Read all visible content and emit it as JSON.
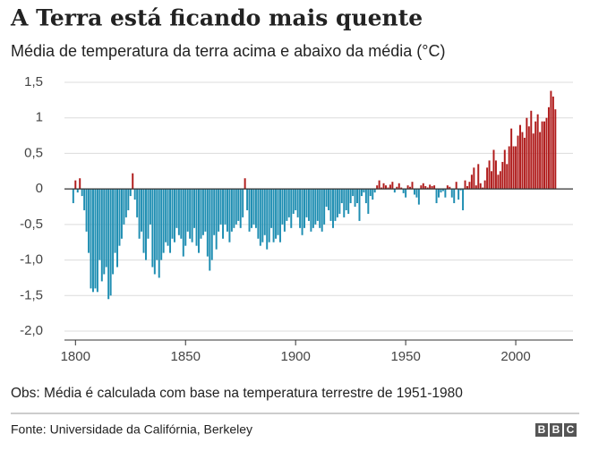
{
  "chart_data": {
    "type": "bar",
    "title": "A Terra está ficando mais quente",
    "subtitle": "Média de temperatura da terra acima e abaixo da média (°C)",
    "note": "Obs: Média é calculada com base na temperatura terrestre de 1951-1980",
    "source": "Fonte: Universidade da Califórnia, Berkeley",
    "logo": [
      "B",
      "B",
      "C"
    ],
    "positive_color": "#b01c1c",
    "negative_color": "#1f8eb2",
    "grid": true,
    "xlim": [
      1795,
      2026
    ],
    "xticks": [
      1800,
      1850,
      1900,
      1950,
      2000
    ],
    "ylim": [
      -2.0,
      1.5
    ],
    "yticks": [
      {
        "value": 1.5,
        "label": "1,5"
      },
      1,
      {
        "value": 0.5,
        "label": "0,5"
      },
      0,
      {
        "value": -0.5,
        "label": "-0,5"
      },
      {
        "value": -1.0,
        "label": "-1,0"
      },
      {
        "value": -1.5,
        "label": "-1,5"
      },
      {
        "value": -2.0,
        "label": "-2,0"
      }
    ],
    "x": [
      1799,
      1800,
      1801,
      1802,
      1803,
      1804,
      1805,
      1806,
      1807,
      1808,
      1809,
      1810,
      1811,
      1812,
      1813,
      1814,
      1815,
      1816,
      1817,
      1818,
      1819,
      1820,
      1821,
      1822,
      1823,
      1824,
      1825,
      1826,
      1827,
      1828,
      1829,
      1830,
      1831,
      1832,
      1833,
      1834,
      1835,
      1836,
      1837,
      1838,
      1839,
      1840,
      1841,
      1842,
      1843,
      1844,
      1845,
      1846,
      1847,
      1848,
      1849,
      1850,
      1851,
      1852,
      1853,
      1854,
      1855,
      1856,
      1857,
      1858,
      1859,
      1860,
      1861,
      1862,
      1863,
      1864,
      1865,
      1866,
      1867,
      1868,
      1869,
      1870,
      1871,
      1872,
      1873,
      1874,
      1875,
      1876,
      1877,
      1878,
      1879,
      1880,
      1881,
      1882,
      1883,
      1884,
      1885,
      1886,
      1887,
      1888,
      1889,
      1890,
      1891,
      1892,
      1893,
      1894,
      1895,
      1896,
      1897,
      1898,
      1899,
      1900,
      1901,
      1902,
      1903,
      1904,
      1905,
      1906,
      1907,
      1908,
      1909,
      1910,
      1911,
      1912,
      1913,
      1914,
      1915,
      1916,
      1917,
      1918,
      1919,
      1920,
      1921,
      1922,
      1923,
      1924,
      1925,
      1926,
      1927,
      1928,
      1929,
      1930,
      1931,
      1932,
      1933,
      1934,
      1935,
      1936,
      1937,
      1938,
      1939,
      1940,
      1941,
      1942,
      1943,
      1944,
      1945,
      1946,
      1947,
      1948,
      1949,
      1950,
      1951,
      1952,
      1953,
      1954,
      1955,
      1956,
      1957,
      1958,
      1959,
      1960,
      1961,
      1962,
      1963,
      1964,
      1965,
      1966,
      1967,
      1968,
      1969,
      1970,
      1971,
      1972,
      1973,
      1974,
      1975,
      1976,
      1977,
      1978,
      1979,
      1980,
      1981,
      1982,
      1983,
      1984,
      1985,
      1986,
      1987,
      1988,
      1989,
      1990,
      1991,
      1992,
      1993,
      1994,
      1995,
      1996,
      1997,
      1998,
      1999,
      2000,
      2001,
      2002,
      2003,
      2004,
      2005,
      2006,
      2007,
      2008,
      2009,
      2010,
      2011,
      2012,
      2013,
      2014,
      2015,
      2016,
      2017,
      2018
    ],
    "values": [
      -0.2,
      0.12,
      -0.05,
      0.15,
      -0.1,
      -0.3,
      -0.6,
      -0.9,
      -1.4,
      -1.45,
      -1.4,
      -1.45,
      -1.0,
      -1.3,
      -1.2,
      -1.1,
      -1.55,
      -1.5,
      -1.2,
      -0.9,
      -1.1,
      -0.8,
      -0.7,
      -0.5,
      -0.4,
      -0.3,
      -0.1,
      0.22,
      -0.15,
      -0.4,
      -0.7,
      -0.6,
      -0.9,
      -1.0,
      -0.7,
      -0.5,
      -1.1,
      -1.2,
      -1.0,
      -1.25,
      -1.0,
      -0.9,
      -0.75,
      -0.8,
      -0.9,
      -0.7,
      -0.75,
      -0.55,
      -0.65,
      -0.7,
      -0.95,
      -0.8,
      -0.6,
      -0.7,
      -0.75,
      -0.55,
      -0.8,
      -0.9,
      -0.7,
      -0.65,
      -0.6,
      -0.95,
      -1.15,
      -1.0,
      -0.65,
      -0.85,
      -0.6,
      -0.5,
      -0.7,
      -0.5,
      -0.6,
      -0.75,
      -0.6,
      -0.55,
      -0.5,
      -0.45,
      -0.55,
      -0.4,
      0.15,
      -0.3,
      -0.6,
      -0.55,
      -0.5,
      -0.55,
      -0.7,
      -0.8,
      -0.75,
      -0.65,
      -0.85,
      -0.75,
      -0.55,
      -0.75,
      -0.7,
      -0.65,
      -0.75,
      -0.5,
      -0.6,
      -0.45,
      -0.4,
      -0.55,
      -0.35,
      -0.3,
      -0.4,
      -0.55,
      -0.65,
      -0.55,
      -0.4,
      -0.45,
      -0.6,
      -0.55,
      -0.5,
      -0.45,
      -0.55,
      -0.6,
      -0.5,
      -0.25,
      -0.3,
      -0.45,
      -0.55,
      -0.45,
      -0.4,
      -0.35,
      -0.2,
      -0.4,
      -0.3,
      -0.35,
      -0.2,
      -0.1,
      -0.25,
      -0.2,
      -0.45,
      -0.1,
      -0.05,
      -0.2,
      -0.35,
      -0.1,
      -0.15,
      -0.05,
      0.05,
      0.12,
      0.02,
      0.08,
      0.05,
      0.02,
      0.06,
      0.1,
      -0.05,
      0.03,
      0.08,
      0.02,
      -0.06,
      -0.12,
      0.05,
      0.03,
      0.1,
      -0.08,
      -0.12,
      -0.22,
      0.05,
      0.08,
      0.04,
      0.02,
      0.06,
      0.04,
      0.05,
      -0.2,
      -0.12,
      -0.05,
      -0.03,
      -0.12,
      0.05,
      0.03,
      -0.12,
      -0.2,
      0.1,
      -0.15,
      -0.02,
      -0.3,
      0.12,
      0.04,
      0.1,
      0.2,
      0.3,
      0.05,
      0.35,
      0.08,
      0.02,
      0.12,
      0.3,
      0.4,
      0.25,
      0.55,
      0.4,
      0.2,
      0.25,
      0.38,
      0.55,
      0.35,
      0.6,
      0.85,
      0.6,
      0.6,
      0.75,
      0.9,
      0.8,
      0.72,
      1.0,
      0.88,
      1.1,
      0.78,
      0.95,
      1.05,
      0.8,
      0.95,
      0.95,
      1.0,
      1.15,
      1.38,
      1.3,
      1.12
    ]
  }
}
